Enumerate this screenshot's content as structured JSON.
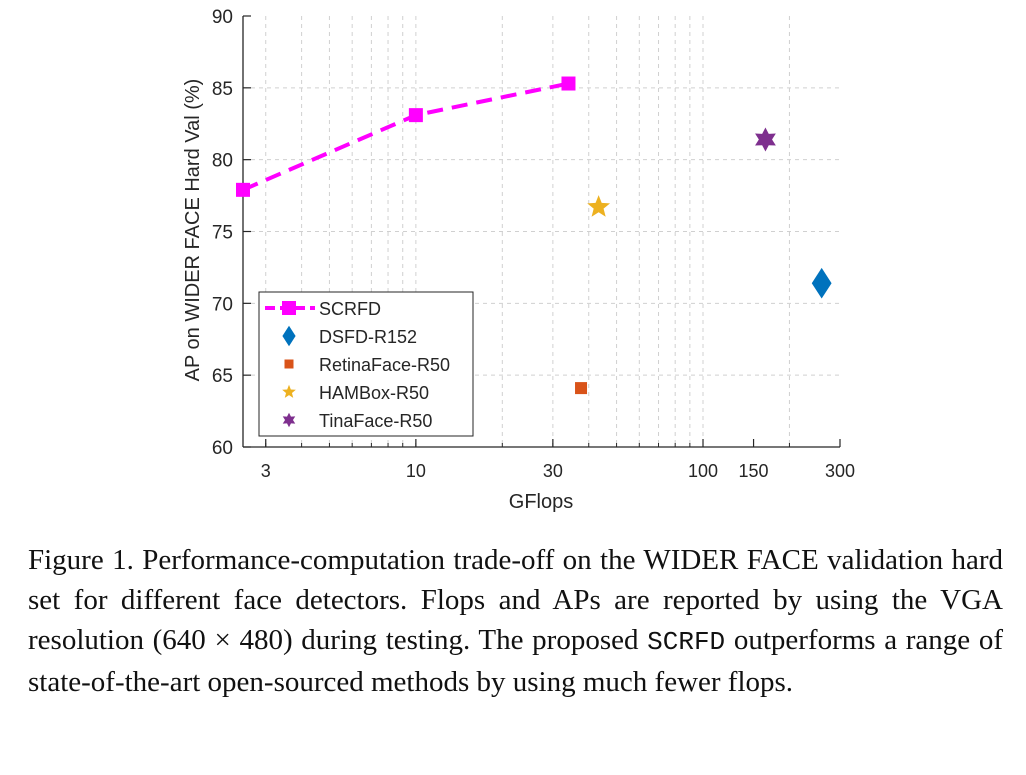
{
  "colors": {
    "scrfd": "#ff00ff",
    "dsfd": "#0072bd",
    "retinaface": "#d95319",
    "hambox": "#edb120",
    "tinaface": "#7e2f8e",
    "grid": "#d0d0d0",
    "axis": "#262626"
  },
  "chart_data": {
    "type": "scatter",
    "xscale": "log",
    "xlabel": "GFlops",
    "ylabel": "AP on WIDER FACE Hard Val (%)",
    "xlim": [
      2.5,
      300
    ],
    "ylim": [
      60,
      90
    ],
    "x_ticks": [
      3,
      10,
      30,
      100,
      150,
      300
    ],
    "x_tick_labels": [
      "3",
      "10",
      "30",
      "100",
      "150",
      "300"
    ],
    "y_ticks": [
      60,
      65,
      70,
      75,
      80,
      85,
      90
    ],
    "y_tick_labels": [
      "60",
      "65",
      "70",
      "75",
      "80",
      "85",
      "90"
    ],
    "grid": true,
    "legend_position": "bottom-left",
    "series": [
      {
        "name": "SCRFD",
        "marker": "square",
        "line": "dashed",
        "color": "#ff00ff",
        "x": [
          2.5,
          10,
          34
        ],
        "y": [
          77.9,
          83.1,
          85.3
        ]
      },
      {
        "name": "DSFD-R152",
        "marker": "diamond",
        "line": "none",
        "color": "#0072bd",
        "x": [
          259.0
        ],
        "y": [
          71.4
        ]
      },
      {
        "name": "RetinaFace-R50",
        "marker": "square",
        "line": "none",
        "color": "#d95319",
        "x": [
          37.6
        ],
        "y": [
          64.1
        ]
      },
      {
        "name": "HAMBox-R50",
        "marker": "star5",
        "line": "none",
        "color": "#edb120",
        "x": [
          43.3
        ],
        "y": [
          76.7
        ]
      },
      {
        "name": "TinaFace-R50",
        "marker": "star6",
        "line": "none",
        "color": "#7e2f8e",
        "x": [
          165.0
        ],
        "y": [
          81.4
        ]
      }
    ]
  },
  "caption": {
    "text_before": "Figure 1. Performance-computation trade-off on the WIDER FACE validation hard set for different face detectors. Flops and APs are reported by using the VGA resolution (640 × 480) during testing. The proposed ",
    "code": "SCRFD",
    "text_after": " outperforms a range of state-of-the-art open-sourced methods by using much fewer flops."
  }
}
